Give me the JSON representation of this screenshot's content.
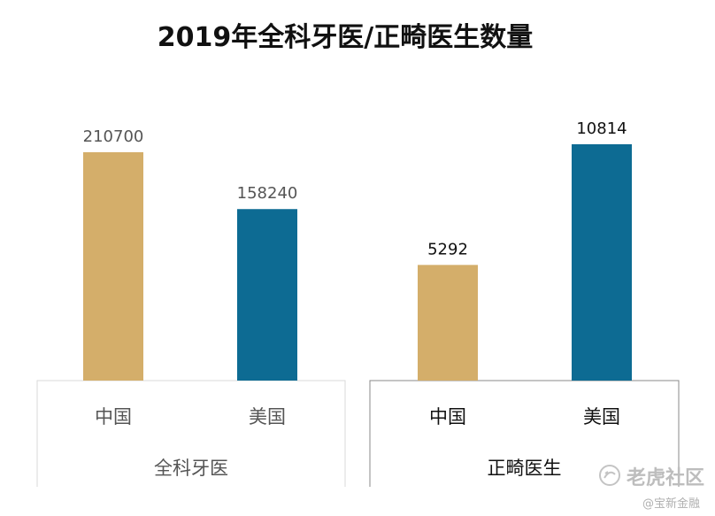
{
  "chart_data": [
    {
      "type": "bar",
      "group": "全科牙医",
      "categories": [
        "中国",
        "美国"
      ],
      "values": [
        210700,
        158240
      ],
      "colors": [
        "#d4ae6a",
        "#0d6b93"
      ],
      "ylim": [
        0,
        245000
      ]
    },
    {
      "type": "bar",
      "group": "正畸医生",
      "categories": [
        "中国",
        "美国"
      ],
      "values": [
        5292,
        10814
      ],
      "colors": [
        "#d4ae6a",
        "#0d6b93"
      ],
      "ylim": [
        0,
        12150
      ]
    }
  ],
  "title": "2019年全科牙医/正畸医生数量",
  "watermark": {
    "text": "老虎社区",
    "sub": "@宝新金融"
  }
}
